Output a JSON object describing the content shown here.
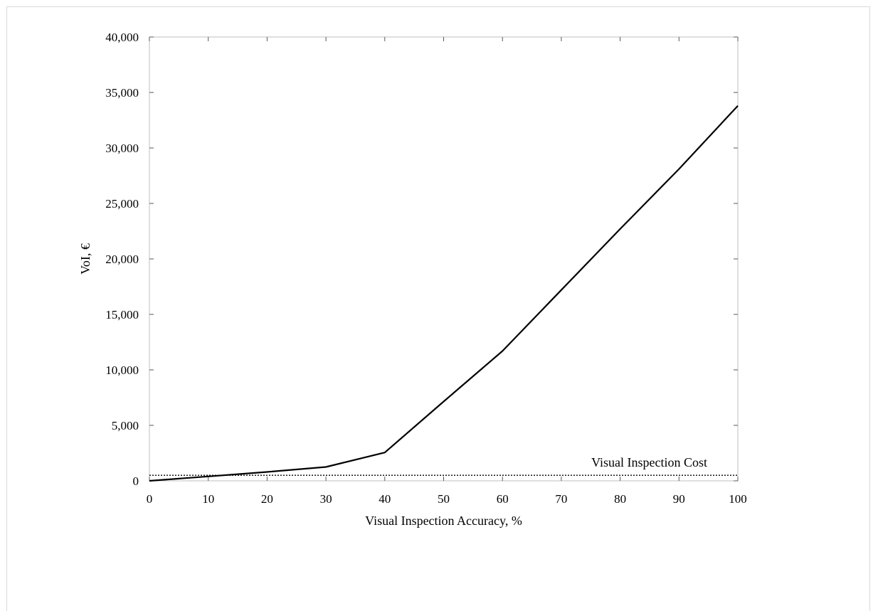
{
  "chart_data": {
    "type": "line",
    "title": "",
    "xlabel": "Visual Inspection Accuracy, %",
    "ylabel": "VoI, €",
    "xlim": [
      0,
      100
    ],
    "ylim": [
      0,
      40000
    ],
    "x_ticks": [
      0,
      10,
      20,
      30,
      40,
      50,
      60,
      70,
      80,
      90,
      100
    ],
    "x_tick_labels": [
      "0",
      "10",
      "20",
      "30",
      "40",
      "50",
      "60",
      "70",
      "80",
      "90",
      "100"
    ],
    "y_ticks": [
      0,
      5000,
      10000,
      15000,
      20000,
      25000,
      30000,
      35000,
      40000
    ],
    "y_tick_labels": [
      "0",
      "5,000",
      "10,000",
      "15,000",
      "20,000",
      "25,000",
      "30,000",
      "35,000",
      "40,000"
    ],
    "grid": false,
    "legend": "none",
    "series": [
      {
        "x": [
          0,
          10,
          20,
          30,
          40,
          50,
          60,
          70,
          80,
          90,
          100
        ],
        "values": [
          0,
          400,
          800,
          1250,
          2550,
          7150,
          11700,
          17200,
          22700,
          28100,
          33800
        ],
        "color": "#000000",
        "style": "solid"
      }
    ],
    "reference_line": {
      "label": "Visual Inspection Cost",
      "value": 500,
      "color": "#000000",
      "style": "dotted"
    }
  }
}
